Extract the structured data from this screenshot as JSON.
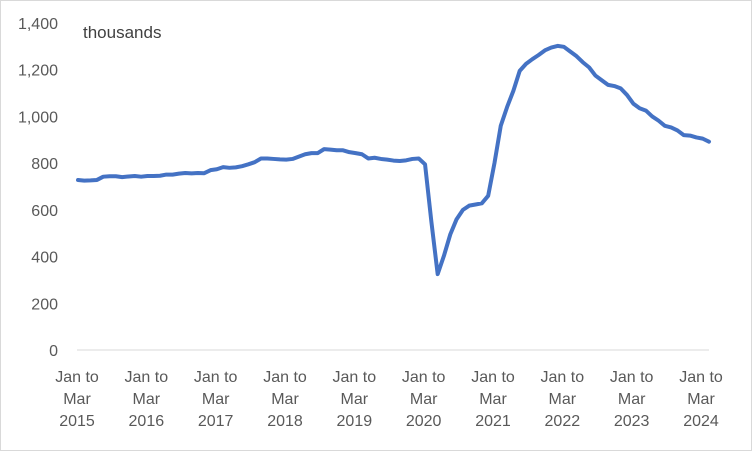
{
  "chart_data": {
    "type": "line",
    "unit_label": "thousands",
    "ylim": [
      0,
      1400
    ],
    "y_ticks": [
      "1,400",
      "1,200",
      "1,000",
      "800",
      "600",
      "400",
      "200",
      "0"
    ],
    "y_tick_values": [
      1400,
      1200,
      1000,
      800,
      600,
      400,
      200,
      0
    ],
    "x_tick_labels": [
      [
        "Jan to",
        "Mar",
        "2015"
      ],
      [
        "Jan to",
        "Mar",
        "2016"
      ],
      [
        "Jan to",
        "Mar",
        "2017"
      ],
      [
        "Jan to",
        "Mar",
        "2018"
      ],
      [
        "Jan to",
        "Mar",
        "2019"
      ],
      [
        "Jan to",
        "Mar",
        "2020"
      ],
      [
        "Jan to",
        "Mar",
        "2021"
      ],
      [
        "Jan to",
        "Mar",
        "2022"
      ],
      [
        "Jan to",
        "Mar",
        "2023"
      ],
      [
        "Jan to",
        "Mar",
        "2024"
      ]
    ],
    "grid": false,
    "line_color": "#4472c4",
    "series": [
      {
        "values": [
          728,
          725,
          726,
          728,
          742,
          744,
          744,
          740,
          743,
          745,
          742,
          745,
          745,
          746,
          751,
          751,
          755,
          758,
          756,
          758,
          757,
          770,
          774,
          783,
          780,
          782,
          787,
          795,
          804,
          820,
          820,
          818,
          816,
          815,
          818,
          828,
          838,
          843,
          843,
          860,
          858,
          855,
          855,
          847,
          843,
          838,
          820,
          823,
          818,
          815,
          811,
          809,
          812,
          818,
          820,
          795,
          550,
          325,
          404,
          495,
          560,
          600,
          618,
          623,
          628,
          660,
          800,
          960,
          1040,
          1110,
          1195,
          1225,
          1245,
          1263,
          1283,
          1295,
          1302,
          1298,
          1278,
          1258,
          1232,
          1210,
          1175,
          1155,
          1135,
          1130,
          1120,
          1092,
          1055,
          1035,
          1025,
          1000,
          982,
          960,
          953,
          940,
          920,
          918,
          910,
          905,
          892
        ]
      }
    ]
  }
}
